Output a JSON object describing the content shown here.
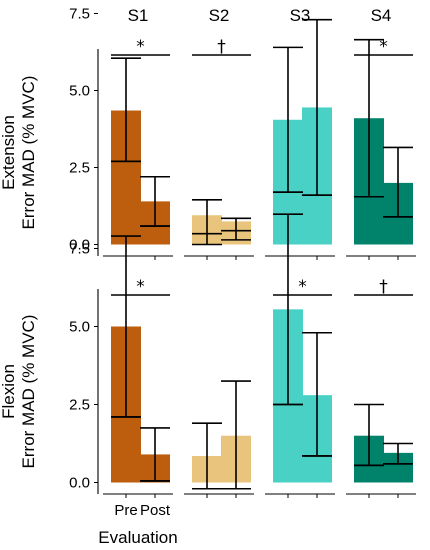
{
  "chart_data": {
    "type": "bar",
    "subtitle": "",
    "xlabel": "Evaluation",
    "ylabel": "Error MAD (% MVC)",
    "facet_columns": [
      "S1",
      "S2",
      "S3",
      "S4"
    ],
    "facet_rows": [
      "Extension",
      "Flexion"
    ],
    "categories": [
      "Pre",
      "Post"
    ],
    "ylim": [
      -0.5,
      8.5
    ],
    "yticks": [
      "0.0",
      "2.5",
      "5.0",
      "7.5"
    ],
    "subject_colors": [
      "#bd5e0e",
      "#e8c47c",
      "#4ad1c5",
      "#00826b"
    ],
    "panels": [
      {
        "row": "Extension",
        "subject": "S1",
        "pre": 4.35,
        "post": 1.4,
        "pre_err": [
          2.7,
          6.05
        ],
        "post_err": [
          0.6,
          2.2
        ],
        "pre_mid": 2.7,
        "post_mid": 0.6,
        "significance": "*"
      },
      {
        "row": "Extension",
        "subject": "S2",
        "pre": 0.95,
        "post": 0.75,
        "pre_err": [
          0.0,
          1.45
        ],
        "post_err": [
          0.15,
          0.85
        ],
        "pre_mid": 0.35,
        "post_mid": 0.45,
        "significance": "†"
      },
      {
        "row": "Extension",
        "subject": "S3",
        "pre": 4.05,
        "post": 4.45,
        "pre_err": [
          1.7,
          6.4
        ],
        "post_err": [
          1.6,
          7.3
        ],
        "pre_mid": 1.7,
        "post_mid": 1.6,
        "significance": ""
      },
      {
        "row": "Extension",
        "subject": "S4",
        "pre": 4.1,
        "post": 2.0,
        "pre_err": [
          1.55,
          6.65
        ],
        "post_err": [
          0.9,
          3.15
        ],
        "pre_mid": 1.55,
        "post_mid": 0.9,
        "significance": "*"
      },
      {
        "row": "Flexion",
        "subject": "S1",
        "pre": 5.0,
        "post": 0.9,
        "pre_err": [
          2.1,
          7.9
        ],
        "post_err": [
          0.05,
          1.75
        ],
        "pre_mid": 2.1,
        "post_mid": 0.05,
        "significance": "*"
      },
      {
        "row": "Flexion",
        "subject": "S2",
        "pre": 0.85,
        "post": 1.5,
        "pre_err": [
          -0.2,
          1.9
        ],
        "post_err": [
          -0.2,
          3.25
        ],
        "pre_mid": -0.2,
        "post_mid": -0.2,
        "significance": ""
      },
      {
        "row": "Flexion",
        "subject": "S3",
        "pre": 5.55,
        "post": 2.8,
        "pre_err": [
          2.5,
          8.6
        ],
        "post_err": [
          0.85,
          4.8
        ],
        "pre_mid": 2.5,
        "post_mid": 0.85,
        "significance": "*"
      },
      {
        "row": "Flexion",
        "subject": "S4",
        "pre": 1.5,
        "post": 0.95,
        "pre_err": [
          0.55,
          2.5
        ],
        "post_err": [
          0.6,
          1.25
        ],
        "pre_mid": 0.55,
        "post_mid": 0.6,
        "significance": "†"
      }
    ]
  }
}
